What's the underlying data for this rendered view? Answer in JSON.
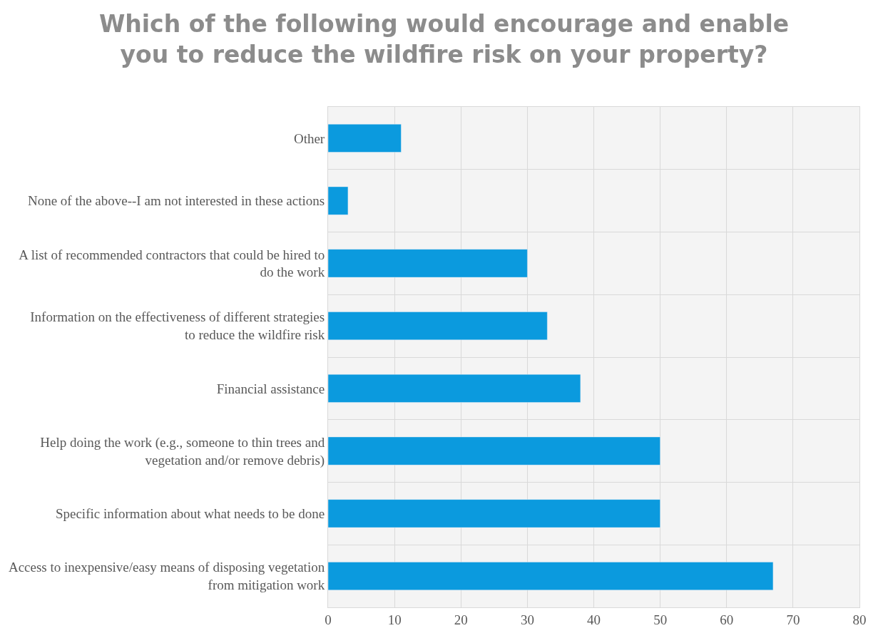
{
  "chart_data": {
    "type": "bar",
    "orientation": "horizontal",
    "title": "Which of the following would encourage and enable you to reduce the wildfire risk on your property?",
    "categories": [
      "Other",
      "None of the above--I am not interested in these actions",
      "A list of recommended contractors that could be hired to do the work",
      "Information on the effectiveness of different strategies to reduce the wildfire risk",
      "Financial assistance",
      "Help doing the work (e.g., someone to thin trees and vegetation and/or remove debris)",
      "Specific information about what needs to be done",
      "Access to inexpensive/easy means of disposing vegetation from mitigation work"
    ],
    "values": [
      11,
      3,
      30,
      33,
      38,
      50,
      50,
      67
    ],
    "color": "#0b9ade",
    "xlim": [
      0,
      80
    ],
    "xticks": [
      0,
      10,
      20,
      30,
      40,
      50,
      60,
      70,
      80
    ],
    "grid": true
  }
}
